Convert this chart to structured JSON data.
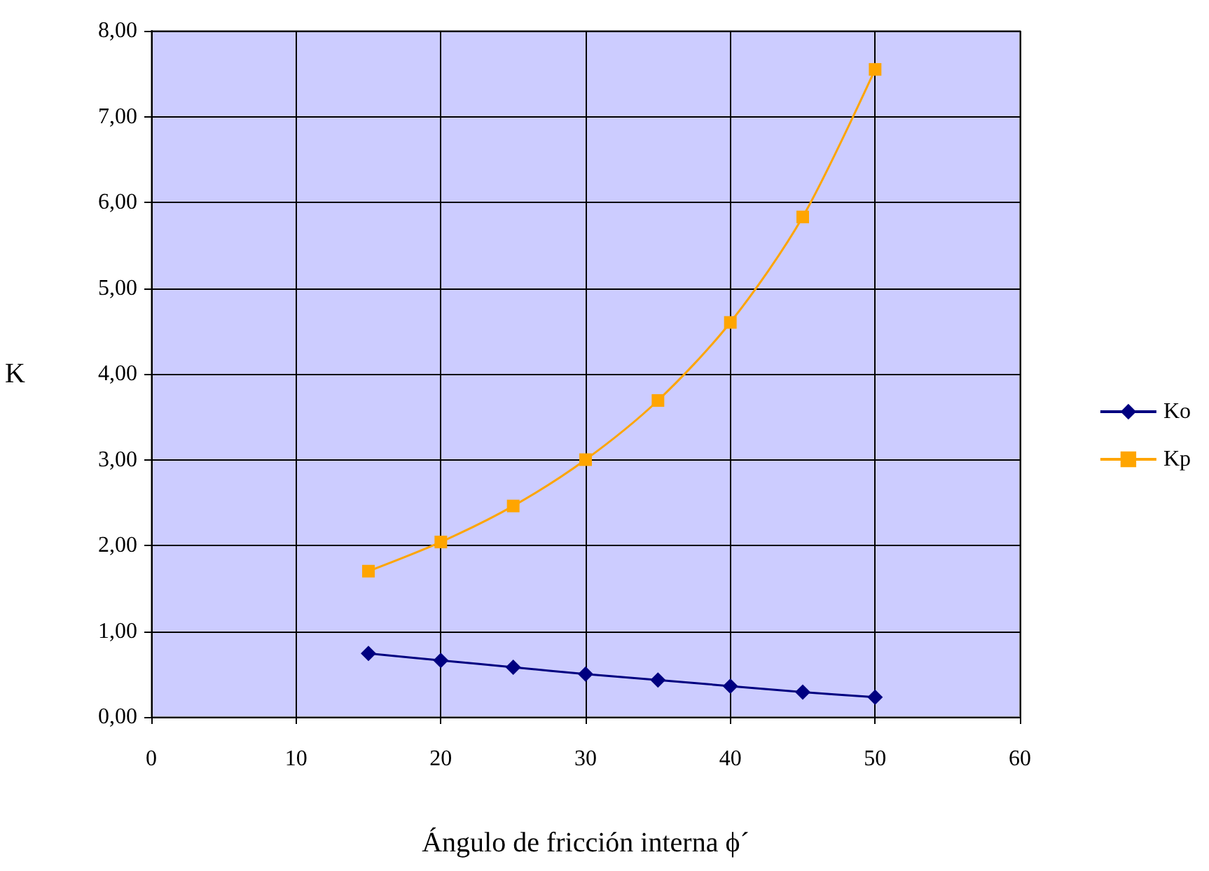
{
  "chart_data": {
    "type": "line",
    "xlabel": "Ángulo de fricción interna ϕ´",
    "ylabel": "K",
    "x": [
      15,
      20,
      25,
      30,
      35,
      40,
      45,
      50
    ],
    "series": [
      {
        "name": "Ko",
        "color": "#000080",
        "marker": "diamond",
        "values": [
          0.74,
          0.66,
          0.58,
          0.5,
          0.43,
          0.36,
          0.29,
          0.23
        ]
      },
      {
        "name": "Kp",
        "color": "#ffa500",
        "marker": "square",
        "values": [
          1.7,
          2.04,
          2.46,
          3.0,
          3.69,
          4.6,
          5.83,
          7.55
        ]
      }
    ],
    "xlim": [
      0,
      60
    ],
    "xticks": [
      0,
      10,
      20,
      30,
      40,
      50,
      60
    ],
    "ylim": [
      0,
      8
    ],
    "yticks": [
      {
        "value": 0,
        "label": "0,00"
      },
      {
        "value": 1,
        "label": "1,00"
      },
      {
        "value": 2,
        "label": "2,00"
      },
      {
        "value": 3,
        "label": "3,00"
      },
      {
        "value": 4,
        "label": "4,00"
      },
      {
        "value": 5,
        "label": "5,00"
      },
      {
        "value": 6,
        "label": "6,00"
      },
      {
        "value": 7,
        "label": "7,00"
      },
      {
        "value": 8,
        "label": "8,00"
      }
    ],
    "grid": true,
    "legend": "right",
    "line_style": "solid"
  }
}
